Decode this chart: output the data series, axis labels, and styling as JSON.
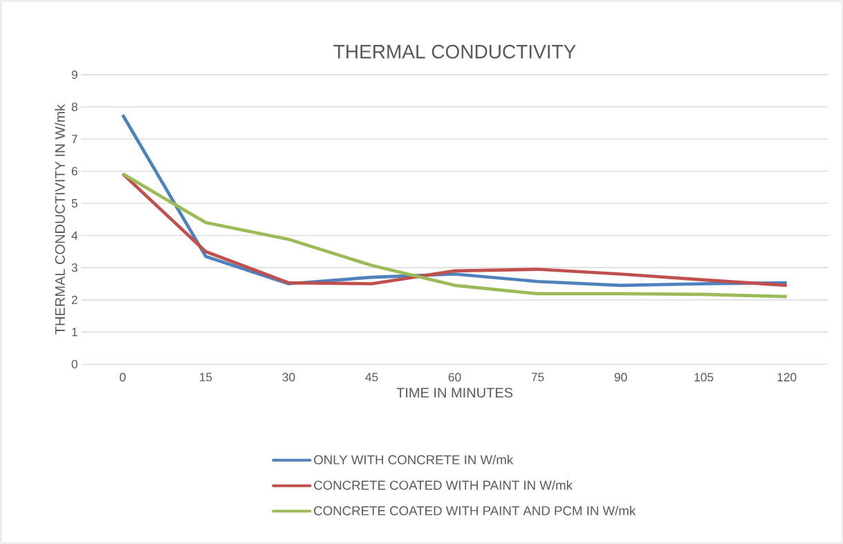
{
  "chart_data": {
    "type": "line",
    "title": "THERMAL CONDUCTIVITY",
    "xlabel": "TIME IN MINUTES",
    "ylabel": "THERMAL CONDUCTIVITY IN W/mk",
    "categories": [
      "0",
      "15",
      "30",
      "45",
      "60",
      "75",
      "90",
      "105",
      "120"
    ],
    "series": [
      {
        "name": "ONLY WITH CONCRETE IN W/mk",
        "color": "#4f81bd",
        "values": [
          7.75,
          3.35,
          2.5,
          2.7,
          2.8,
          2.57,
          2.45,
          2.5,
          2.53
        ]
      },
      {
        "name": "CONCRETE  COATED WITH PAINT IN W/mk",
        "color": "#c0504d",
        "values": [
          5.92,
          3.5,
          2.53,
          2.5,
          2.9,
          2.95,
          2.8,
          2.62,
          2.45
        ]
      },
      {
        "name": "CONCRETE COATED WITH PAINT AND PCM IN W/mk",
        "color": "#9bbb59",
        "values": [
          5.92,
          4.4,
          3.88,
          3.07,
          2.45,
          2.19,
          2.19,
          2.17,
          2.1
        ]
      }
    ],
    "ylim": [
      0,
      9
    ],
    "yticks": [
      0,
      1,
      2,
      3,
      4,
      5,
      6,
      7,
      8,
      9
    ],
    "grid": "y",
    "legend": "bottom",
    "marker": "none",
    "line_style": "solid"
  }
}
